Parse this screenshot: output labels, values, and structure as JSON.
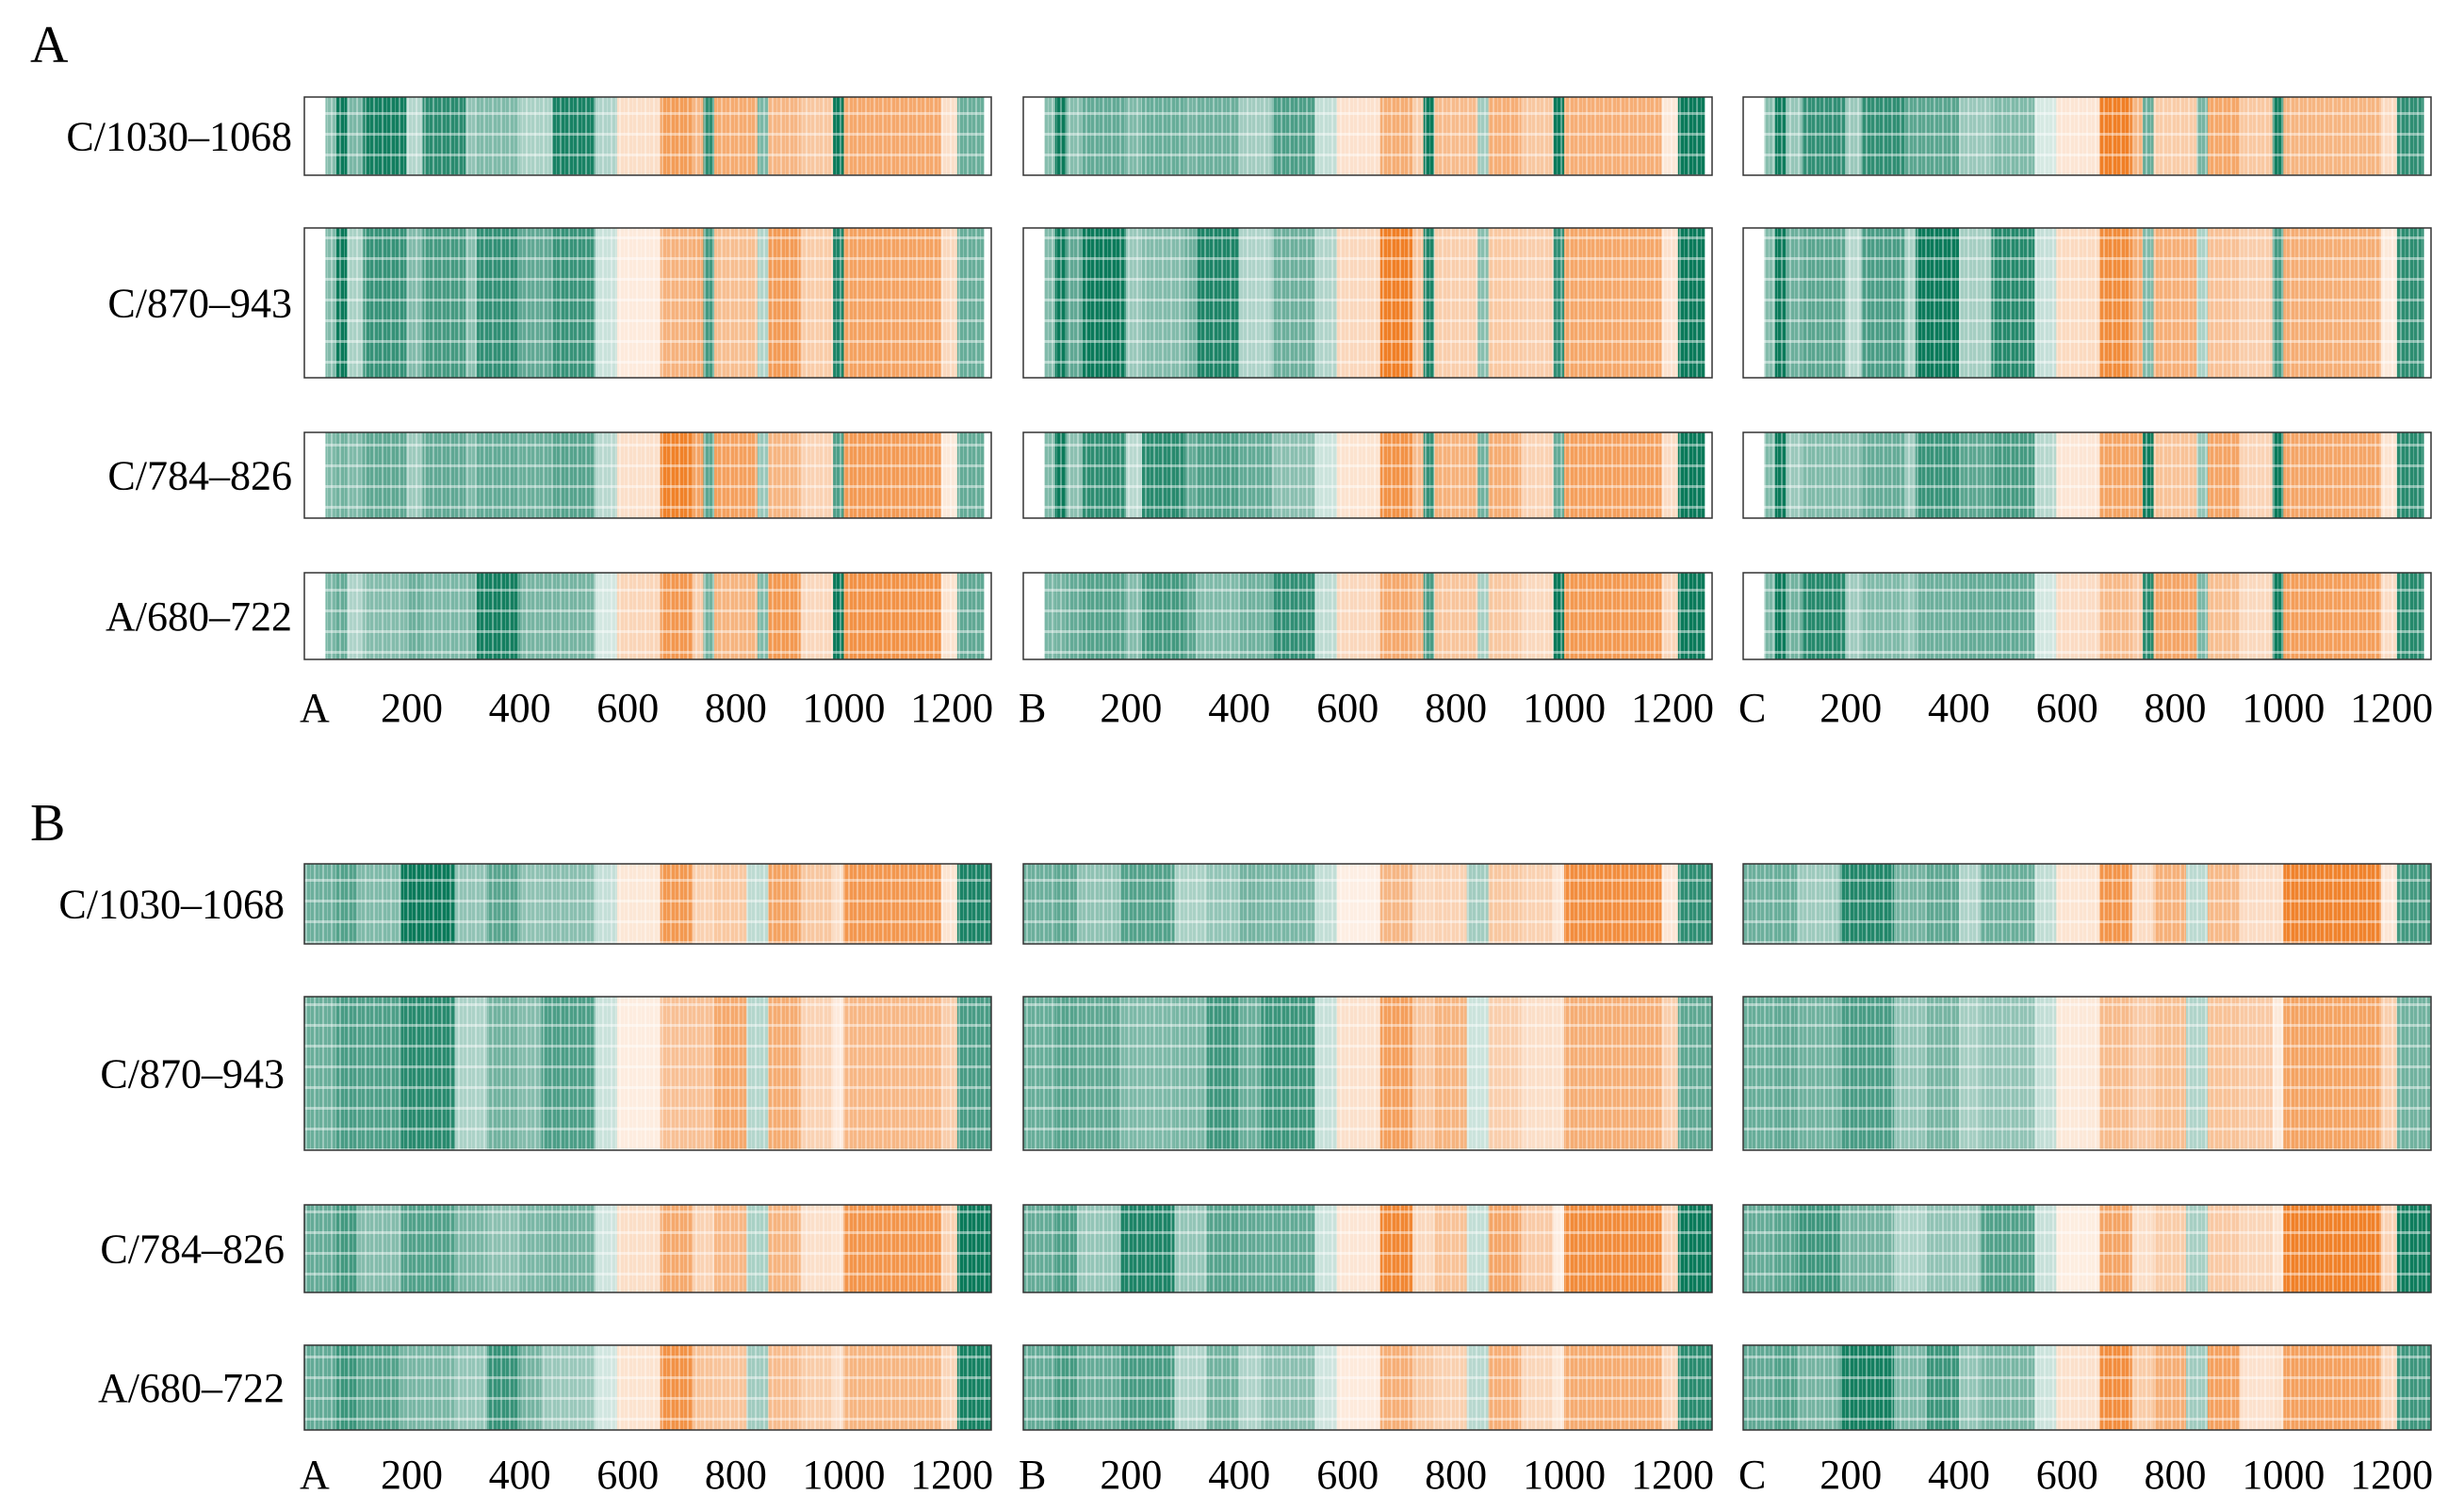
{
  "colors": {
    "green": "#0a7a5a",
    "orange": "#f07f26",
    "frame": "#333333"
  },
  "chart_data": [
    {
      "type": "heatmap",
      "panel": "A",
      "row_labels": [
        "C/1030–1068",
        "C/870–943",
        "C/784–826",
        "A/680–722"
      ],
      "columns": [
        "A",
        "B",
        "C"
      ],
      "x_tick_labels": [
        "200",
        "400",
        "600",
        "800",
        "1000",
        "1200"
      ],
      "x_ticks": [
        200,
        400,
        600,
        800,
        1000,
        1200
      ],
      "xlim": [
        1,
        1273
      ],
      "segments": [
        [
          40,
          60,
          "green",
          0.6
        ],
        [
          60,
          80,
          "green",
          0.85
        ],
        [
          80,
          110,
          "green",
          0.5
        ],
        [
          110,
          190,
          "green",
          0.75
        ],
        [
          190,
          220,
          "green",
          0.45
        ],
        [
          220,
          300,
          "green",
          0.7
        ],
        [
          300,
          320,
          "green",
          0.5
        ],
        [
          320,
          400,
          "green",
          0.75
        ],
        [
          400,
          460,
          "green",
          0.5
        ],
        [
          460,
          540,
          "green",
          0.7
        ],
        [
          540,
          580,
          "green",
          0.25
        ],
        [
          580,
          660,
          "orange",
          0.25
        ],
        [
          660,
          720,
          "orange",
          0.8
        ],
        [
          720,
          740,
          "orange",
          0.55
        ],
        [
          740,
          760,
          "green",
          0.8
        ],
        [
          760,
          840,
          "orange",
          0.55
        ],
        [
          840,
          860,
          "green",
          0.45
        ],
        [
          860,
          920,
          "orange",
          0.6
        ],
        [
          920,
          980,
          "orange",
          0.45
        ],
        [
          980,
          1000,
          "green",
          0.9
        ],
        [
          1000,
          1180,
          "orange",
          0.75
        ],
        [
          1180,
          1210,
          "orange",
          0.25
        ],
        [
          1210,
          1260,
          "green",
          0.85
        ]
      ]
    },
    {
      "type": "heatmap",
      "panel": "B",
      "row_labels": [
        "C/1030–1068",
        "C/870–943",
        "C/784–826",
        "A/680–722"
      ],
      "columns": [
        "A",
        "B",
        "C"
      ],
      "x_tick_labels": [
        "200",
        "400",
        "600",
        "800",
        "1000",
        "1200"
      ],
      "x_ticks": [
        200,
        400,
        600,
        800,
        1000,
        1200
      ],
      "xlim": [
        1,
        1273
      ],
      "segments": [
        [
          1,
          60,
          "green",
          0.55
        ],
        [
          60,
          100,
          "green",
          0.65
        ],
        [
          100,
          180,
          "green",
          0.6
        ],
        [
          180,
          280,
          "green",
          0.8
        ],
        [
          280,
          340,
          "green",
          0.45
        ],
        [
          340,
          400,
          "green",
          0.65
        ],
        [
          400,
          440,
          "green",
          0.5
        ],
        [
          440,
          540,
          "green",
          0.6
        ],
        [
          540,
          580,
          "green",
          0.2
        ],
        [
          580,
          660,
          "orange",
          0.2
        ],
        [
          660,
          720,
          "orange",
          0.7
        ],
        [
          720,
          760,
          "orange",
          0.4
        ],
        [
          760,
          820,
          "orange",
          0.5
        ],
        [
          820,
          860,
          "green",
          0.3
        ],
        [
          860,
          920,
          "orange",
          0.55
        ],
        [
          920,
          980,
          "orange",
          0.35
        ],
        [
          980,
          1000,
          "orange",
          0.2
        ],
        [
          1000,
          1180,
          "orange",
          0.75
        ],
        [
          1180,
          1210,
          "orange",
          0.3
        ],
        [
          1210,
          1273,
          "green",
          0.85
        ]
      ]
    }
  ]
}
